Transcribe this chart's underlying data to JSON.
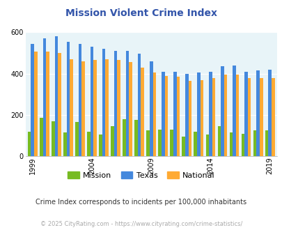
{
  "title": "Mission Violent Crime Index",
  "years": [
    1999,
    2000,
    2001,
    2002,
    2003,
    2004,
    2005,
    2006,
    2007,
    2008,
    2009,
    2010,
    2011,
    2012,
    2013,
    2014,
    2015,
    2016,
    2017,
    2018,
    2019,
    2020
  ],
  "mission": [
    120,
    185,
    170,
    115,
    165,
    120,
    105,
    145,
    180,
    175,
    125,
    130,
    130,
    95,
    120,
    105,
    145,
    115,
    110,
    125,
    125,
    0
  ],
  "texas": [
    545,
    570,
    580,
    555,
    545,
    530,
    520,
    510,
    510,
    495,
    460,
    410,
    410,
    400,
    405,
    410,
    435,
    440,
    410,
    415,
    420,
    0
  ],
  "national": [
    505,
    505,
    500,
    470,
    460,
    465,
    470,
    465,
    455,
    430,
    405,
    390,
    385,
    365,
    370,
    380,
    395,
    395,
    380,
    380,
    380,
    0
  ],
  "mission_color": "#77bb22",
  "texas_color": "#4488dd",
  "national_color": "#ffaa33",
  "plot_bg_color": "#e8f4f8",
  "title_color": "#3355aa",
  "subtitle_color": "#333333",
  "footnote_color": "#aaaaaa",
  "ylabel_max": 600,
  "yticks": [
    0,
    200,
    400,
    600
  ],
  "xtick_positions": [
    1999,
    2004,
    2009,
    2014,
    2019
  ],
  "subtitle": "Crime Index corresponds to incidents per 100,000 inhabitants",
  "footnote": "© 2025 CityRating.com - https://www.cityrating.com/crime-statistics/"
}
